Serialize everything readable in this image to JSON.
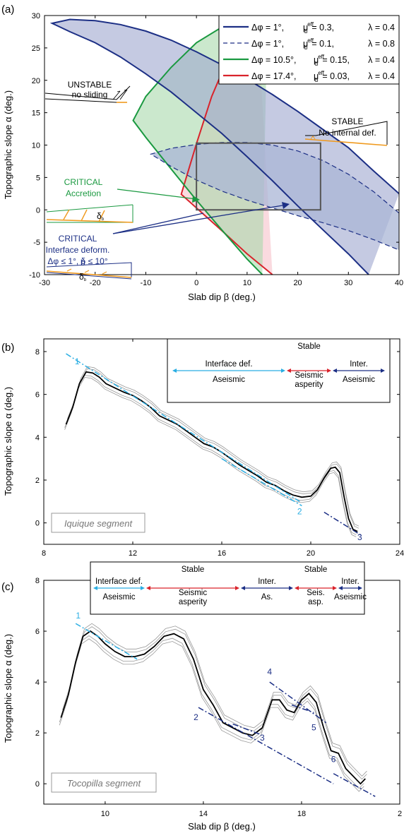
{
  "chart_data": [
    {
      "panel": "(a)",
      "type": "area",
      "xlabel": "Slab dip β (deg.)",
      "ylabel": "Topographic slope α (deg.)",
      "xlim": [
        -30,
        40
      ],
      "ylim": [
        -10,
        30
      ],
      "xticks": [
        "-30",
        "-20",
        "-10",
        "0",
        "10",
        "20",
        "30",
        "40"
      ],
      "yticks": [
        "-10",
        "-5",
        "0",
        "5",
        "10",
        "15",
        "20",
        "25",
        "30"
      ],
      "legend": {
        "placement": "top-right",
        "entries": [
          {
            "dphi": "Δφ = 1°,",
            "mu": "μ = 0.3,",
            "lam": "λ = 0.4",
            "color": "#1c2f85",
            "dash": false
          },
          {
            "dphi": "Δφ = 1°,",
            "mu": "μ = 0.1,",
            "lam": "λ = 0.8",
            "color": "#1c2f85",
            "dash": true
          },
          {
            "dphi": "Δφ = 10.5°,",
            "mu": "μ = 0.15,",
            "lam": "λ = 0.4",
            "color": "#1a9940",
            "dash": false
          },
          {
            "dphi": "Δφ = 17.4°,",
            "mu": "μ = 0.03,",
            "lam": "λ = 0.4",
            "color": "#d9232b",
            "dash": false
          }
        ],
        "mu_sup": "eff",
        "mu_sub": "b"
      },
      "series": [
        {
          "legend_index": 0,
          "color": "#1c2f85",
          "fill": "#9ea6cf",
          "dash": false,
          "upper": [
            [
              -28.5,
              28.8
            ],
            [
              -25,
              29.4
            ],
            [
              -20,
              29.2
            ],
            [
              -15,
              28.6
            ],
            [
              -10,
              27.6
            ],
            [
              -5,
              26.2
            ],
            [
              0,
              24.4
            ],
            [
              5,
              22.4
            ],
            [
              10,
              20.2
            ],
            [
              15,
              17.8
            ],
            [
              20,
              15.2
            ],
            [
              25,
              12.4
            ],
            [
              30,
              9.6
            ],
            [
              35,
              6.0
            ],
            [
              40,
              2.5
            ]
          ],
          "lower": [
            [
              -28.5,
              28.8
            ],
            [
              -25,
              27.5
            ],
            [
              -20,
              25.8
            ],
            [
              -15,
              23.6
            ],
            [
              -10,
              21.0
            ],
            [
              -5,
              18.2
            ],
            [
              0,
              15.0
            ],
            [
              5,
              11.8
            ],
            [
              10,
              8.2
            ],
            [
              15,
              4.5
            ],
            [
              20,
              0.6
            ],
            [
              25,
              -3.1
            ],
            [
              30,
              -6.8
            ],
            [
              34,
              -10
            ]
          ]
        },
        {
          "legend_index": 1,
          "color": "#1c2f85",
          "fill": "#aab5d5",
          "dash": true,
          "upper": [
            [
              -9,
              8.6
            ],
            [
              -5,
              9.5
            ],
            [
              0,
              10.1
            ],
            [
              5,
              10.4
            ],
            [
              10,
              10.4
            ],
            [
              15,
              10.0
            ],
            [
              20,
              9.1
            ],
            [
              25,
              7.6
            ],
            [
              30,
              5.5
            ],
            [
              35,
              2.8
            ],
            [
              40,
              -0.5
            ]
          ],
          "lower": [
            [
              -9,
              8.6
            ],
            [
              -5,
              6.7
            ],
            [
              0,
              4.6
            ],
            [
              5,
              2.9
            ],
            [
              10,
              1.5
            ],
            [
              15,
              0.3
            ],
            [
              20,
              -0.9
            ],
            [
              25,
              -2.0
            ],
            [
              30,
              -3.2
            ],
            [
              35,
              -4.6
            ],
            [
              40,
              -6.2
            ]
          ]
        },
        {
          "legend_index": 2,
          "color": "#1a9940",
          "fill": "#a8d9ac",
          "dash": false,
          "upper": [
            [
              -12.5,
              13.8
            ],
            [
              -10,
              17.5
            ],
            [
              -5,
              22.0
            ],
            [
              0,
              25.8
            ],
            [
              5,
              28.2
            ],
            [
              10,
              29.6
            ],
            [
              14,
              30
            ]
          ],
          "lower": [
            [
              -12.5,
              13.8
            ],
            [
              -10,
              11.2
            ],
            [
              -5,
              6.3
            ],
            [
              0,
              1.5
            ],
            [
              5,
              -3.1
            ],
            [
              10,
              -7.6
            ],
            [
              13,
              -10
            ]
          ]
        },
        {
          "legend_index": 3,
          "color": "#d9232b",
          "fill": "#f6c2c9",
          "dash": false,
          "upper": [
            [
              -3,
              2.4
            ],
            [
              0,
              10.2
            ],
            [
              3,
              17.5
            ],
            [
              6,
              23.0
            ],
            [
              9,
              27.3
            ],
            [
              12,
              30
            ]
          ],
          "lower": [
            [
              -3,
              2.4
            ],
            [
              0,
              0.3
            ],
            [
              5,
              -3.2
            ],
            [
              10,
              -6.8
            ],
            [
              15,
              -10
            ]
          ],
          "right": [
            [
              31,
              30
            ],
            [
              35,
              27
            ],
            [
              40,
              23
            ]
          ],
          "right_bottom": [
            [
              28,
              -10
            ],
            [
              40,
              -10
            ]
          ]
        }
      ],
      "box": {
        "x": [
          0,
          24.5
        ],
        "y": [
          0,
          10.3
        ]
      },
      "annotations": {
        "unstable": [
          "UNSTABLE",
          "no sliding"
        ],
        "stable": [
          "STABLE",
          "No internal def."
        ],
        "critical_acc": [
          "CRITICAL",
          "Accretion"
        ],
        "critical_int": [
          "CRITICAL",
          "Interface deform.",
          "Δφ ≤ 1°, δ  ≤ 10°"
        ],
        "delta_b": "δ",
        "sub_b": "b"
      }
    },
    {
      "panel": "(b)",
      "type": "line",
      "segment_name": "Iquique segment",
      "xlabel": "",
      "ylabel": "Topographic slope α (deg.)",
      "xlim": [
        8,
        24
      ],
      "ylim": [
        -1,
        8
      ],
      "xticks": [
        "8",
        "12",
        "16",
        "20",
        "24"
      ],
      "yticks": [
        "0",
        "2",
        "4",
        "6",
        "8"
      ],
      "profile_x": [
        9,
        9.3,
        9.6,
        9.9,
        10.2,
        10.5,
        10.8,
        11.2,
        11.6,
        12,
        12.4,
        12.8,
        13.2,
        13.6,
        14,
        14.4,
        14.8,
        15.2,
        15.6,
        16,
        16.4,
        16.8,
        17.2,
        17.6,
        18,
        18.4,
        18.8,
        19.2,
        19.6,
        20,
        20.3,
        20.6,
        20.9,
        21.1,
        21.3,
        21.5,
        21.7,
        21.9,
        22.1
      ],
      "profile_y": [
        4.6,
        5.4,
        6.5,
        7.05,
        7.0,
        6.8,
        6.5,
        6.3,
        6.1,
        5.95,
        5.7,
        5.4,
        5.0,
        4.8,
        4.6,
        4.3,
        4.0,
        3.7,
        3.55,
        3.3,
        3.0,
        2.7,
        2.45,
        2.2,
        1.9,
        1.75,
        1.5,
        1.3,
        1.2,
        1.25,
        1.55,
        2.1,
        2.55,
        2.6,
        2.35,
        1.2,
        0.2,
        -0.3,
        -0.4
      ],
      "profile_spread": 0.25,
      "fits": [
        {
          "label": "1",
          "color": "#2aaee3",
          "x": [
            9,
            19.5
          ],
          "y": [
            7.9,
            1.0
          ],
          "label_at": [
            9.5,
            7.4
          ]
        },
        {
          "label": "2",
          "color": "#2aaee3",
          "x": [
            16,
            19.6
          ],
          "y": [
            3.0,
            0.8
          ],
          "label_at": [
            19.5,
            0.4
          ]
        },
        {
          "label": "3",
          "color": "#1c2f85",
          "x": [
            20.6,
            22.3
          ],
          "y": [
            0.5,
            -0.6
          ],
          "label_at": [
            22.2,
            -0.8
          ]
        }
      ],
      "bar": {
        "top_labels": [
          "",
          "Stable",
          ""
        ],
        "mid_labels": [
          "Interface def.",
          "",
          "Inter."
        ],
        "bottom_labels": [
          "Aseismic",
          "Seismic\nasperity",
          "Aseismic"
        ],
        "colors": [
          "#2aaee3",
          "#d9232b",
          "#1c2f85"
        ]
      }
    },
    {
      "panel": "(c)",
      "type": "line",
      "segment_name": "Tocopilla segment",
      "xlabel": "Slab dip β (deg.)",
      "ylabel": "Topographic slope α (deg.)",
      "xlim": [
        7.5,
        22
      ],
      "ylim": [
        -0.8,
        8
      ],
      "xticks": [
        "10",
        "14",
        "18",
        "2"
      ],
      "yticks": [
        "0",
        "2",
        "4",
        "6",
        "8"
      ],
      "profile_x": [
        8.2,
        8.5,
        8.8,
        9.1,
        9.4,
        9.7,
        10,
        10.4,
        10.8,
        11.2,
        11.6,
        12,
        12.4,
        12.8,
        13.2,
        13.6,
        14,
        14.4,
        14.8,
        15.2,
        15.6,
        16,
        16.4,
        16.8,
        17.1,
        17.4,
        17.7,
        18,
        18.3,
        18.6,
        18.9,
        19.2,
        19.5,
        19.8,
        20.1,
        20.4,
        20.6
      ],
      "profile_y": [
        2.6,
        3.5,
        4.8,
        5.8,
        6.0,
        5.8,
        5.5,
        5.2,
        5.0,
        5.0,
        5.1,
        5.4,
        5.8,
        5.9,
        5.7,
        4.9,
        3.7,
        3.1,
        2.4,
        2.2,
        2.0,
        1.9,
        2.2,
        3.3,
        3.3,
        2.9,
        2.8,
        3.3,
        3.55,
        3.2,
        2.2,
        1.3,
        1.2,
        0.6,
        0.3,
        0.0,
        0.2
      ],
      "profile_spread": 0.3,
      "fits": [
        {
          "label": "1",
          "color": "#2aaee3",
          "x": [
            8.8,
            11.3
          ],
          "y": [
            6.3,
            4.9
          ],
          "label_at": [
            8.9,
            6.5
          ]
        },
        {
          "label": "2",
          "color": "#1c2f85",
          "x": [
            13.8,
            19.3
          ],
          "y": [
            3.0,
            0.0
          ],
          "label_at": [
            13.7,
            2.5
          ]
        },
        {
          "label": "3",
          "color": "#1c2f85",
          "x": [
            15.2,
            16.3
          ],
          "y": [
            2.35,
            1.95
          ],
          "label_at": [
            16.4,
            1.7
          ]
        },
        {
          "label": "4",
          "color": "#1c2f85",
          "x": [
            16.7,
            19.0
          ],
          "y": [
            4.0,
            2.4
          ],
          "label_at": [
            16.7,
            4.3
          ]
        },
        {
          "label": "5",
          "color": "#1c2f85",
          "x": [
            17.6,
            18.5
          ],
          "y": [
            3.1,
            2.8
          ],
          "label_at": [
            18.5,
            2.1
          ]
        },
        {
          "label": "6",
          "color": "#1c2f85",
          "x": [
            19.3,
            21.0
          ],
          "y": [
            0.4,
            -0.5
          ],
          "label_at": [
            19.3,
            0.85
          ]
        }
      ],
      "bar": {
        "top_labels": [
          "",
          "Stable",
          "",
          "Stable",
          ""
        ],
        "mid_labels": [
          "Interface def.",
          "",
          "Inter.",
          "",
          "Inter."
        ],
        "bottom_labels": [
          "Aseismic",
          "Seismic\nasperity",
          "As.",
          "Seis.\nasp.",
          "Aseismic"
        ],
        "colors": [
          "#2aaee3",
          "#d9232b",
          "#1c2f85",
          "#d9232b",
          "#1c2f85"
        ]
      }
    }
  ]
}
